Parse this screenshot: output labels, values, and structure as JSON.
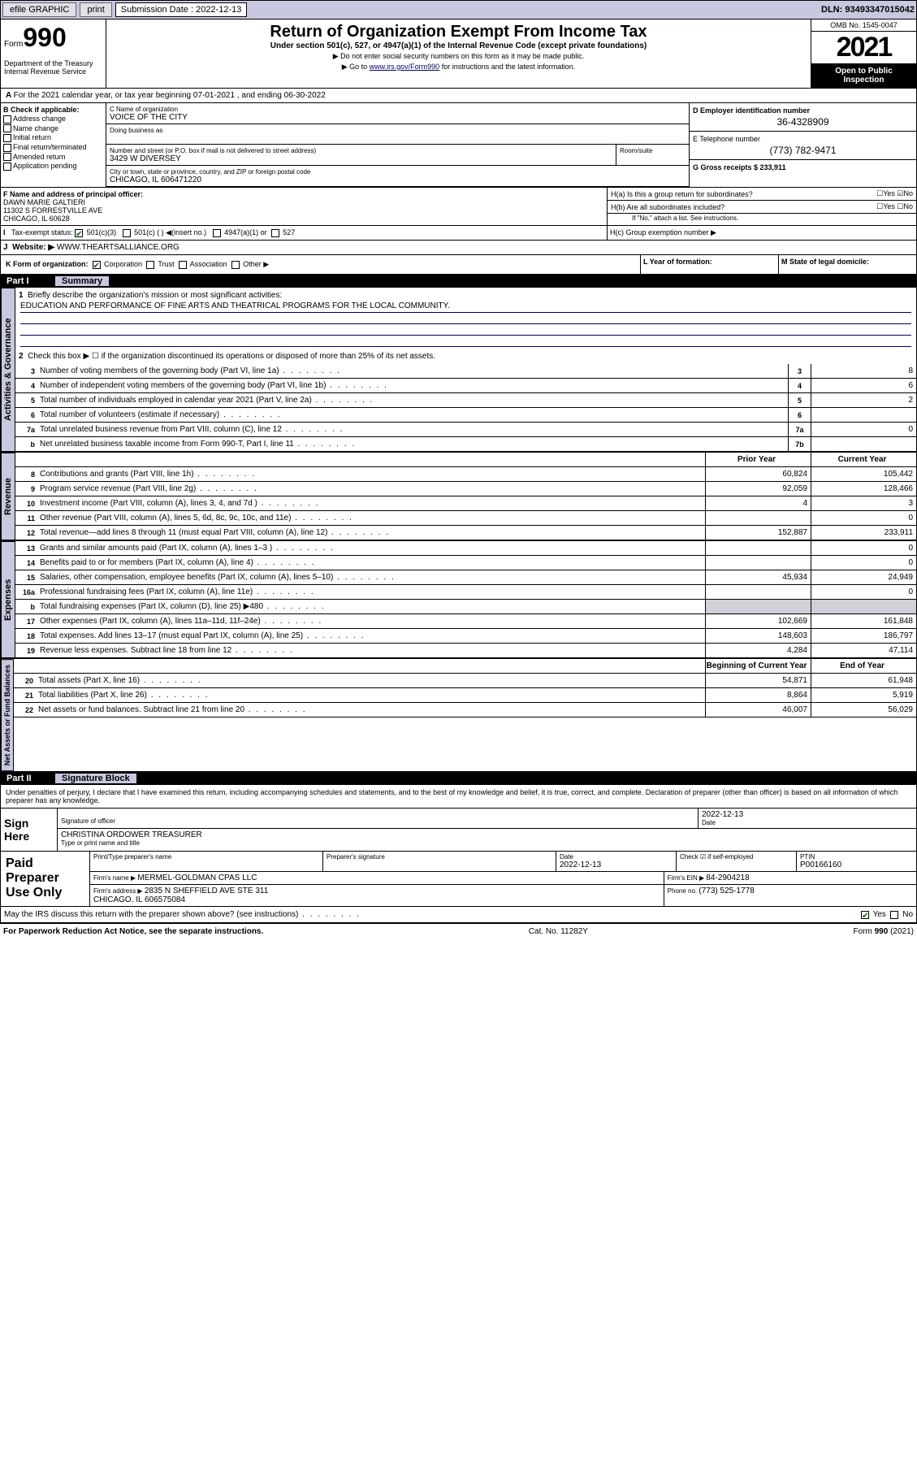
{
  "topbar": {
    "efile": "efile GRAPHIC",
    "print": "print",
    "sub_label": "Submission Date : 2022-12-13",
    "dln": "DLN: 93493347015042"
  },
  "header": {
    "form_pre": "Form",
    "form_num": "990",
    "dept": "Department of the Treasury\nInternal Revenue Service",
    "title": "Return of Organization Exempt From Income Tax",
    "subtitle": "Under section 501(c), 527, or 4947(a)(1) of the Internal Revenue Code (except private foundations)",
    "note1": "▶ Do not enter social security numbers on this form as it may be made public.",
    "note2_pre": "▶ Go to ",
    "note2_link": "www.irs.gov/Form990",
    "note2_post": " for instructions and the latest information.",
    "omb": "OMB No. 1545-0047",
    "year": "2021",
    "open": "Open to Public Inspection"
  },
  "secA": {
    "tax_year": "For the 2021 calendar year, or tax year beginning 07-01-2021   , and ending 06-30-2022",
    "b_label": "B Check if applicable:",
    "b_opts": [
      "Address change",
      "Name change",
      "Initial return",
      "Final return/terminated",
      "Amended return",
      "Application pending"
    ],
    "c_name_lbl": "C Name of organization",
    "c_name": "VOICE OF THE CITY",
    "dba_lbl": "Doing business as",
    "addr_lbl": "Number and street (or P.O. box if mail is not delivered to street address)",
    "room_lbl": "Room/suite",
    "addr": "3429 W DIVERSEY",
    "city_lbl": "City or town, state or province, country, and ZIP or foreign postal code",
    "city": "CHICAGO, IL  606471220",
    "d_lbl": "D Employer identification number",
    "d_val": "36-4328909",
    "e_lbl": "E Telephone number",
    "e_val": "(773) 782-9471",
    "g_lbl": "G Gross receipts $ 233,911",
    "f_lbl": "F  Name and address of principal officer:",
    "f_val": "DAWN MARIE GALTIERI\n11302 S FORRESTVILLE AVE\nCHICAGO, IL  60628",
    "ha": "H(a)  Is this a group return for subordinates?",
    "hb": "H(b)  Are all subordinates included?",
    "hb_note": "If \"No,\" attach a list. See instructions.",
    "hc": "H(c)  Group exemption number ▶",
    "i_lbl": "Tax-exempt status:",
    "i_501c3": "501(c)(3)",
    "i_501c": "501(c) (  ) ◀(insert no.)",
    "i_4947": "4947(a)(1) or",
    "i_527": "527",
    "j_lbl": "Website: ▶",
    "j_val": "WWW.THEARTSALLIANCE.ORG",
    "k_lbl": "K Form of organization:",
    "k_opts": [
      "Corporation",
      "Trust",
      "Association",
      "Other ▶"
    ],
    "l_lbl": "L Year of formation:",
    "m_lbl": "M State of legal domicile:"
  },
  "part1": {
    "head": "Part I",
    "title": "Summary",
    "q1_lbl": "Briefly describe the organization's mission or most significant activities:",
    "q1_val": "EDUCATION AND PERFORMANCE OF FINE ARTS AND THEATRICAL PROGRAMS FOR THE LOCAL COMMUNITY.",
    "q2": "Check this box ▶ ☐  if the organization discontinued its operations or disposed of more than 25% of its net assets.",
    "vtab1": "Activities & Governance",
    "vtab2": "Revenue",
    "vtab3": "Expenses",
    "vtab4": "Net Assets or Fund Balances",
    "lines_gov": [
      {
        "n": "3",
        "t": "Number of voting members of the governing body (Part VI, line 1a)",
        "b": "3",
        "v": "8"
      },
      {
        "n": "4",
        "t": "Number of independent voting members of the governing body (Part VI, line 1b)",
        "b": "4",
        "v": "6"
      },
      {
        "n": "5",
        "t": "Total number of individuals employed in calendar year 2021 (Part V, line 2a)",
        "b": "5",
        "v": "2"
      },
      {
        "n": "6",
        "t": "Total number of volunteers (estimate if necessary)",
        "b": "6",
        "v": ""
      },
      {
        "n": "7a",
        "t": "Total unrelated business revenue from Part VIII, column (C), line 12",
        "b": "7a",
        "v": "0"
      },
      {
        "n": "b",
        "t": "Net unrelated business taxable income from Form 990-T, Part I, line 11",
        "b": "7b",
        "v": ""
      }
    ],
    "pyr": "Prior Year",
    "cyr": "Current Year",
    "lines_rev": [
      {
        "n": "8",
        "t": "Contributions and grants (Part VIII, line 1h)",
        "p": "60,824",
        "c": "105,442"
      },
      {
        "n": "9",
        "t": "Program service revenue (Part VIII, line 2g)",
        "p": "92,059",
        "c": "128,466"
      },
      {
        "n": "10",
        "t": "Investment income (Part VIII, column (A), lines 3, 4, and 7d )",
        "p": "4",
        "c": "3"
      },
      {
        "n": "11",
        "t": "Other revenue (Part VIII, column (A), lines 5, 6d, 8c, 9c, 10c, and 11e)",
        "p": "",
        "c": "0"
      },
      {
        "n": "12",
        "t": "Total revenue—add lines 8 through 11 (must equal Part VIII, column (A), line 12)",
        "p": "152,887",
        "c": "233,911"
      }
    ],
    "lines_exp": [
      {
        "n": "13",
        "t": "Grants and similar amounts paid (Part IX, column (A), lines 1–3 )",
        "p": "",
        "c": "0"
      },
      {
        "n": "14",
        "t": "Benefits paid to or for members (Part IX, column (A), line 4)",
        "p": "",
        "c": "0"
      },
      {
        "n": "15",
        "t": "Salaries, other compensation, employee benefits (Part IX, column (A), lines 5–10)",
        "p": "45,934",
        "c": "24,949"
      },
      {
        "n": "16a",
        "t": "Professional fundraising fees (Part IX, column (A), line 11e)",
        "p": "",
        "c": "0"
      },
      {
        "n": "b",
        "t": "Total fundraising expenses (Part IX, column (D), line 25) ▶480",
        "p": "sh",
        "c": "sh"
      },
      {
        "n": "17",
        "t": "Other expenses (Part IX, column (A), lines 11a–11d, 11f–24e)",
        "p": "102,669",
        "c": "161,848"
      },
      {
        "n": "18",
        "t": "Total expenses. Add lines 13–17 (must equal Part IX, column (A), line 25)",
        "p": "148,603",
        "c": "186,797"
      },
      {
        "n": "19",
        "t": "Revenue less expenses. Subtract line 18 from line 12",
        "p": "4,284",
        "c": "47,114"
      }
    ],
    "boc": "Beginning of Current Year",
    "eoy": "End of Year",
    "lines_net": [
      {
        "n": "20",
        "t": "Total assets (Part X, line 16)",
        "p": "54,871",
        "c": "61,948"
      },
      {
        "n": "21",
        "t": "Total liabilities (Part X, line 26)",
        "p": "8,864",
        "c": "5,919"
      },
      {
        "n": "22",
        "t": "Net assets or fund balances. Subtract line 21 from line 20",
        "p": "46,007",
        "c": "56,029"
      }
    ]
  },
  "part2": {
    "head": "Part II",
    "title": "Signature Block",
    "decl": "Under penalties of perjury, I declare that I have examined this return, including accompanying schedules and statements, and to the best of my knowledge and belief, it is true, correct, and complete. Declaration of preparer (other than officer) is based on all information of which preparer has any knowledge.",
    "sign_here": "Sign Here",
    "sig_of": "Signature of officer",
    "date": "Date",
    "date_v": "2022-12-13",
    "name_title": "CHRISTINA ORDOWER  TREASURER",
    "name_lbl": "Type or print name and title",
    "paid": "Paid Preparer Use Only",
    "pt_name": "Print/Type preparer's name",
    "pt_sig": "Preparer's signature",
    "pt_date": "Date",
    "pt_date_v": "2022-12-13",
    "pt_check": "Check ☑ if self-employed",
    "ptin_lbl": "PTIN",
    "ptin": "P00166160",
    "firm_name_lbl": "Firm's name    ▶",
    "firm_name": "MERMEL-GOLDMAN CPAS LLC",
    "firm_ein_lbl": "Firm's EIN ▶",
    "firm_ein": "84-2904218",
    "firm_addr_lbl": "Firm's address ▶",
    "firm_addr": "2835 N SHEFFIELD AVE STE 311\nCHICAGO, IL  606575084",
    "phone_lbl": "Phone no.",
    "phone": "(773) 525-1778",
    "discuss": "May the IRS discuss this return with the preparer shown above? (see instructions)",
    "paperwork": "For Paperwork Reduction Act Notice, see the separate instructions.",
    "cat": "Cat. No. 11282Y",
    "formfoot": "Form 990 (2021)"
  }
}
